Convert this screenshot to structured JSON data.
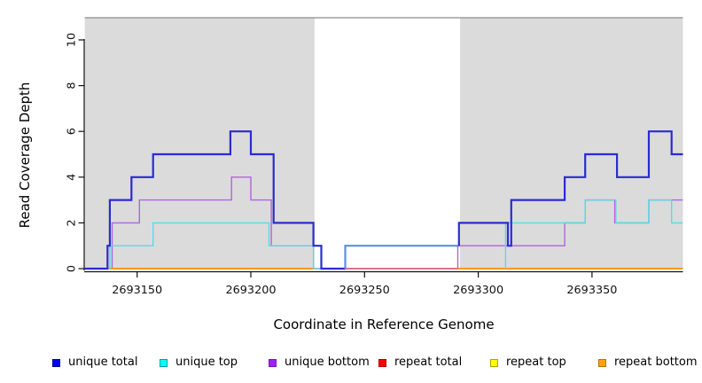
{
  "chart_data": {
    "type": "line",
    "subtype": "step-coverage",
    "title": "",
    "xlabel": "Coordinate in Reference Genome",
    "ylabel": "Read Coverage Depth",
    "xlim": [
      2693127,
      2693390
    ],
    "ylim": [
      0,
      11.1
    ],
    "x_ticks": [
      2693150,
      2693200,
      2693250,
      2693300,
      2693350
    ],
    "y_ticks": [
      0,
      2,
      4,
      6,
      8,
      10
    ],
    "grid": false,
    "legend_position": "bottom",
    "plot_background": {
      "shaded_color": "#DBDBDB",
      "shaded_regions": [
        [
          2693127,
          2693228
        ],
        [
          2693292,
          2693390
        ]
      ],
      "unshaded_region": [
        2693228,
        2693292
      ],
      "top_border_color": "#8C8C8C"
    },
    "series": [
      {
        "name": "repeat top",
        "line_color": "#FFFF00",
        "line_width": 1.4,
        "runs": [
          [
            [
              2693127,
              0
            ],
            [
              2693390,
              0
            ]
          ]
        ]
      },
      {
        "name": "unique bottom",
        "line_color": "#B164DB",
        "line_width": 1.4,
        "runs": [
          [
            [
              2693127,
              0
            ],
            [
              2693139,
              0
            ],
            [
              2693139,
              2
            ],
            [
              2693151,
              2
            ],
            [
              2693151,
              3
            ],
            [
              2693191.5,
              3
            ],
            [
              2693191.5,
              4
            ],
            [
              2693200,
              4
            ],
            [
              2693200,
              3
            ],
            [
              2693209,
              3
            ],
            [
              2693209,
              1
            ],
            [
              2693231,
              1
            ],
            [
              2693231,
              0
            ],
            [
              2693291,
              0
            ],
            [
              2693291,
              1
            ],
            [
              2693338,
              1
            ],
            [
              2693338,
              2
            ],
            [
              2693347,
              2
            ],
            [
              2693347,
              3
            ],
            [
              2693360,
              3
            ],
            [
              2693360,
              2
            ],
            [
              2693375,
              2
            ],
            [
              2693375,
              3
            ],
            [
              2693390,
              3
            ]
          ]
        ]
      },
      {
        "name": "repeat total",
        "line_color": "#D95F7F",
        "line_width": 1.4,
        "runs": [
          [
            [
              2693127,
              0
            ],
            [
              2693390,
              0
            ]
          ]
        ]
      },
      {
        "name": "repeat bottom",
        "line_color": "#FF9712",
        "line_width": 1.9,
        "runs": [
          [
            [
              2693127,
              0
            ],
            [
              2693227.5,
              0
            ]
          ],
          [
            [
              2693291,
              0
            ],
            [
              2693390,
              0
            ]
          ]
        ]
      },
      {
        "name": "unique top",
        "line_color": "#55DCE6",
        "line_width": 1.4,
        "runs": [
          [
            [
              2693127,
              0
            ],
            [
              2693138,
              0
            ],
            [
              2693138,
              1
            ],
            [
              2693157,
              1
            ],
            [
              2693157,
              2
            ],
            [
              2693208,
              2
            ],
            [
              2693208,
              1
            ],
            [
              2693227.5,
              1
            ],
            [
              2693227.5,
              0
            ],
            [
              2693231,
              0
            ]
          ],
          [
            [
              2693312,
              0
            ],
            [
              2693312,
              2
            ],
            [
              2693347,
              2
            ],
            [
              2693347,
              3
            ],
            [
              2693360.5,
              3
            ],
            [
              2693360.5,
              2
            ],
            [
              2693375,
              2
            ],
            [
              2693375,
              3
            ],
            [
              2693385,
              3
            ],
            [
              2693385,
              2
            ],
            [
              2693390,
              2
            ]
          ]
        ]
      },
      {
        "name": "unique total",
        "line_color": "#2B2BD3",
        "line_width": 2.2,
        "run_colors": [
          "#2B2BD3",
          "#5B8DEF",
          "#2B2BD3"
        ],
        "runs": [
          [
            [
              2693127,
              0
            ],
            [
              2693137,
              0
            ],
            [
              2693137,
              1
            ],
            [
              2693138,
              1
            ],
            [
              2693138,
              3
            ],
            [
              2693147.5,
              3
            ],
            [
              2693147.5,
              4
            ],
            [
              2693157,
              4
            ],
            [
              2693157,
              5
            ],
            [
              2693191,
              5
            ],
            [
              2693191,
              6
            ],
            [
              2693200,
              6
            ],
            [
              2693200,
              5
            ],
            [
              2693210,
              5
            ],
            [
              2693210,
              2
            ],
            [
              2693227.5,
              2
            ],
            [
              2693227.5,
              1
            ],
            [
              2693231,
              1
            ],
            [
              2693231,
              0
            ],
            [
              2693241.5,
              0
            ]
          ],
          [
            [
              2693241.5,
              0
            ],
            [
              2693241.5,
              1
            ],
            [
              2693291.5,
              1
            ]
          ],
          [
            [
              2693291.5,
              1
            ],
            [
              2693291.5,
              2
            ],
            [
              2693313,
              2
            ],
            [
              2693313,
              1
            ],
            [
              2693314.5,
              1
            ],
            [
              2693314.5,
              3
            ],
            [
              2693338,
              3
            ],
            [
              2693338,
              4
            ],
            [
              2693347,
              4
            ],
            [
              2693347,
              5
            ],
            [
              2693361,
              5
            ],
            [
              2693361,
              4
            ],
            [
              2693375,
              4
            ],
            [
              2693375,
              6
            ],
            [
              2693385,
              6
            ],
            [
              2693385,
              5
            ],
            [
              2693390,
              5
            ]
          ]
        ]
      }
    ],
    "legend": [
      {
        "label": "unique total",
        "fill": "#0000FF",
        "border": "#000099"
      },
      {
        "label": "unique top",
        "fill": "#00FFFF",
        "border": "#009DA6"
      },
      {
        "label": "unique bottom",
        "fill": "#A020F0",
        "border": "#7A14B8"
      },
      {
        "label": "repeat total",
        "fill": "#FF0000",
        "border": "#B30000"
      },
      {
        "label": "repeat top",
        "fill": "#FFFF00",
        "border": "#B3A100"
      },
      {
        "label": "repeat bottom",
        "fill": "#FFA500",
        "border": "#B87400"
      }
    ]
  }
}
